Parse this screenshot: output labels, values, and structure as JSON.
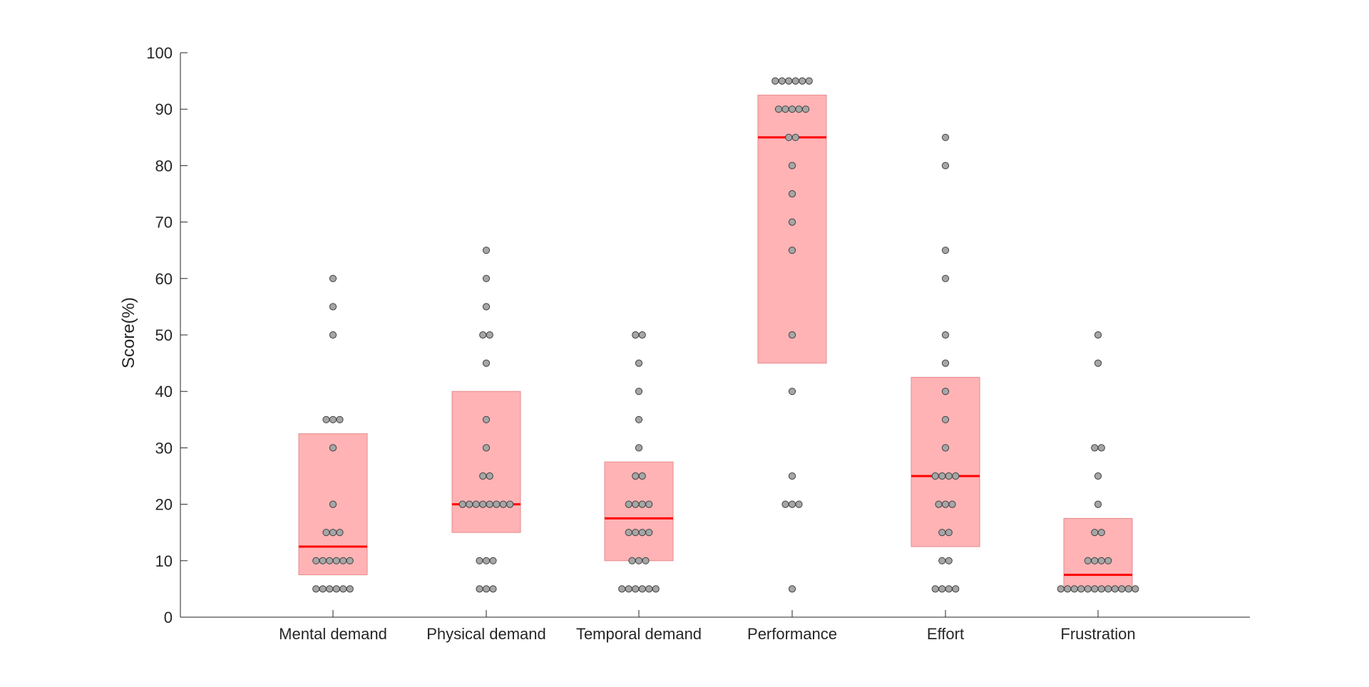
{
  "chart_data": {
    "type": "box-swarm",
    "ylabel": "Score(%)",
    "ylim": [
      0,
      100
    ],
    "yticks": [
      0,
      10,
      20,
      30,
      40,
      50,
      60,
      70,
      80,
      90,
      100
    ],
    "grid": false,
    "colors": {
      "box_fill": "#ffb3b5",
      "box_edge": "#e58a8c",
      "median": "#ff0000",
      "point_fill": "#a6a6a6",
      "point_edge": "#404040",
      "axis": "#262626"
    },
    "categories": [
      "Mental demand",
      "Physical demand",
      "Temporal demand",
      "Performance",
      "Effort",
      "Frustration"
    ],
    "boxes": [
      {
        "q1": 7.5,
        "median": 12.5,
        "q3": 32.5
      },
      {
        "q1": 15,
        "median": 20,
        "q3": 40
      },
      {
        "q1": 10,
        "median": 17.5,
        "q3": 27.5
      },
      {
        "q1": 45,
        "median": 85,
        "q3": 92.5
      },
      {
        "q1": 12.5,
        "median": 25,
        "q3": 42.5
      },
      {
        "q1": 5,
        "median": 7.5,
        "q3": 17.5
      }
    ],
    "points": [
      [
        60,
        55,
        50,
        35,
        35,
        35,
        30,
        20,
        15,
        15,
        15,
        10,
        10,
        10,
        10,
        10,
        10,
        5,
        5,
        5,
        5,
        5,
        5
      ],
      [
        65,
        60,
        55,
        50,
        50,
        45,
        35,
        30,
        25,
        25,
        20,
        20,
        20,
        20,
        20,
        20,
        20,
        20,
        10,
        10,
        10,
        5,
        5,
        5
      ],
      [
        50,
        50,
        45,
        40,
        35,
        30,
        25,
        25,
        20,
        20,
        20,
        20,
        15,
        15,
        15,
        15,
        10,
        10,
        10,
        5,
        5,
        5,
        5,
        5,
        5
      ],
      [
        95,
        95,
        95,
        95,
        95,
        95,
        90,
        90,
        90,
        90,
        90,
        85,
        85,
        80,
        75,
        70,
        65,
        50,
        40,
        25,
        20,
        20,
        20,
        5
      ],
      [
        85,
        80,
        65,
        60,
        50,
        45,
        40,
        35,
        30,
        25,
        25,
        25,
        25,
        20,
        20,
        20,
        15,
        15,
        10,
        10,
        5,
        5,
        5,
        5
      ],
      [
        50,
        45,
        30,
        30,
        25,
        20,
        15,
        15,
        10,
        10,
        10,
        10,
        5,
        5,
        5,
        5,
        5,
        5,
        5,
        5,
        5,
        5,
        5,
        5
      ]
    ]
  }
}
